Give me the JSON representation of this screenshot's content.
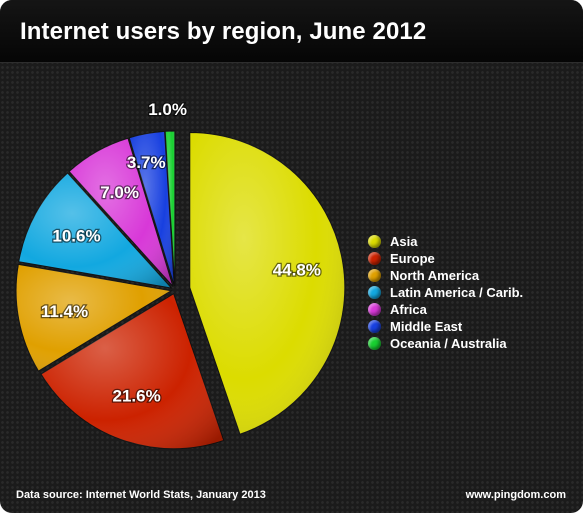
{
  "chart_data": {
    "type": "pie",
    "title": "Internet users by region, June 2012",
    "slices": [
      {
        "name": "Asia",
        "value": 44.8,
        "label": "44.8%",
        "color": "#dcdc00",
        "exploded": true
      },
      {
        "name": "Europe",
        "value": 21.6,
        "label": "21.6%",
        "color": "#cc2200"
      },
      {
        "name": "North America",
        "value": 11.4,
        "label": "11.4%",
        "color": "#e0a000"
      },
      {
        "name": "Latin America / Carib.",
        "value": 10.6,
        "label": "10.6%",
        "color": "#12a8e0"
      },
      {
        "name": "Africa",
        "value": 7.0,
        "label": "7.0%",
        "color": "#d838d8"
      },
      {
        "name": "Middle East",
        "value": 3.7,
        "label": "3.7%",
        "color": "#1840e0"
      },
      {
        "name": "Oceania / Australia",
        "value": 1.0,
        "label": "1.0%",
        "color": "#18d030"
      }
    ],
    "legend_position": "right"
  },
  "footer": {
    "source": "Data source: Internet World Stats, January 2013",
    "credit": "www.pingdom.com"
  }
}
